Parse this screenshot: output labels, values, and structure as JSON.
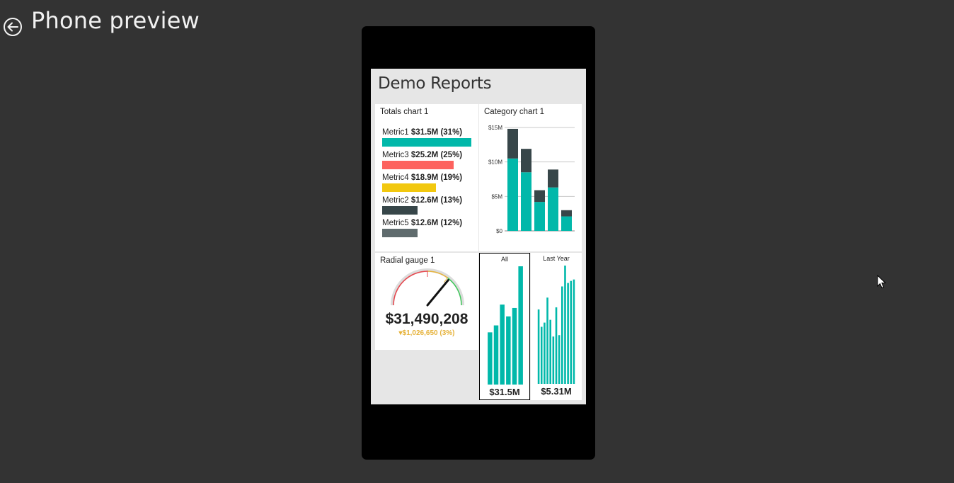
{
  "header": {
    "title": "Phone preview",
    "back_icon": "back-arrow-circle-icon"
  },
  "report": {
    "title": "Demo Reports"
  },
  "totals_chart": {
    "title": "Totals chart 1",
    "max_value": 31.5,
    "metrics": [
      {
        "name": "Metric1",
        "value_label": "$31.5M (31%)",
        "value": 31.5,
        "color": "#01b8aa"
      },
      {
        "name": "Metric3",
        "value_label": "$25.2M (25%)",
        "value": 25.2,
        "color": "#fd625e"
      },
      {
        "name": "Metric4",
        "value_label": "$18.9M (19%)",
        "value": 18.9,
        "color": "#f2c80f"
      },
      {
        "name": "Metric2",
        "value_label": "$12.6M (13%)",
        "value": 12.6,
        "color": "#374649"
      },
      {
        "name": "Metric5",
        "value_label": "$12.6M (12%)",
        "value": 12.6,
        "color": "#5f6b6d"
      }
    ]
  },
  "category_chart": {
    "title": "Category chart 1",
    "chart_data": {
      "type": "bar",
      "stacked": true,
      "ylim": [
        0,
        15
      ],
      "yticks": [
        {
          "value": 0,
          "label": "$0"
        },
        {
          "value": 5,
          "label": "$5M"
        },
        {
          "value": 10,
          "label": "$10M"
        },
        {
          "value": 15,
          "label": "$15M"
        }
      ],
      "categories": [
        "",
        "",
        "",
        "",
        ""
      ],
      "series": [
        {
          "values": [
            10.5,
            8.5,
            4.2,
            6.3,
            2.1
          ],
          "color": "#01b8aa"
        },
        {
          "values": [
            4.3,
            3.4,
            1.7,
            2.6,
            0.9
          ],
          "color": "#374649"
        }
      ]
    }
  },
  "gauge": {
    "title": "Radial gauge 1",
    "value_label": "$31,490,208",
    "delta_label": "▾$1,026,650 (3%)",
    "fraction": 0.72
  },
  "kpi_all": {
    "label": "All",
    "value_label": "$31.5M",
    "chart_data": {
      "type": "bar",
      "values": [
        7.5,
        8.5,
        11.5,
        9.8,
        11.0,
        17.0
      ],
      "ylim": [
        0,
        17
      ]
    }
  },
  "kpi_last_year": {
    "label": "Last Year",
    "value_label": "$5.31M",
    "chart_data": {
      "type": "bar",
      "values": [
        10.7,
        8.2,
        8.8,
        12.4,
        9.2,
        6.8,
        11.0,
        7.0,
        14.0,
        17.0,
        14.5,
        14.8,
        15.0
      ],
      "ylim": [
        0,
        17
      ]
    }
  },
  "colors": {
    "background": "#333333",
    "accent": "#01b8aa",
    "phone_frame": "#000000"
  }
}
